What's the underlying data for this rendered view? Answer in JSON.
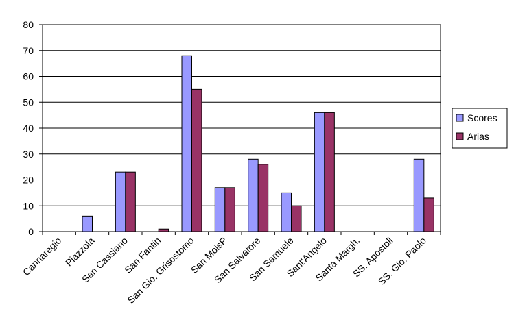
{
  "chart_data": {
    "type": "bar",
    "categories": [
      "Cannaregio",
      "Piazzola",
      "San Cassiano",
      "San Fantin",
      "San Gio. Grisostomo",
      "San MoisP",
      "San Salvatore",
      "San Samuele",
      "Sant'Angelo",
      "Santa Margh.",
      "SS. Apostoli",
      "SS. Gio. Paolo"
    ],
    "series": [
      {
        "name": "Scores",
        "color": "#9999ff",
        "values": [
          0,
          6,
          23,
          0,
          68,
          17,
          28,
          15,
          46,
          0,
          0,
          28
        ]
      },
      {
        "name": "Arias",
        "color": "#993366",
        "values": [
          0,
          0,
          23,
          1,
          55,
          17,
          26,
          10,
          46,
          0,
          0,
          13
        ]
      }
    ],
    "ylim": [
      0,
      80
    ],
    "yticks": [
      0,
      10,
      20,
      30,
      40,
      50,
      60,
      70,
      80
    ],
    "grid": true,
    "legend": "right"
  }
}
